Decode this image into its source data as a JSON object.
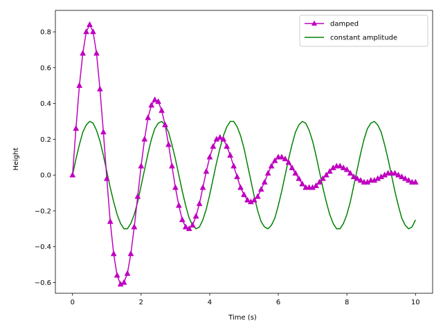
{
  "chart_data": {
    "type": "line",
    "title": "",
    "xlabel": "Time (s)",
    "ylabel": "Height",
    "xlim": [
      -0.5,
      10.5
    ],
    "ylim": [
      -0.66,
      0.92
    ],
    "xticks": [
      0,
      2,
      4,
      6,
      8,
      10
    ],
    "xtick_labels": [
      "0",
      "2",
      "4",
      "6",
      "8",
      "10"
    ],
    "yticks": [
      -0.6,
      -0.4,
      -0.2,
      0.0,
      0.2,
      0.4,
      0.6,
      0.8
    ],
    "ytick_labels": [
      "−0.6",
      "−0.4",
      "−0.2",
      "0.0",
      "0.2",
      "0.4",
      "0.6",
      "0.8"
    ],
    "grid": false,
    "legend_position": "top-right",
    "series": [
      {
        "name": "damped",
        "color": "#bf00bf",
        "marker": "triangle-up",
        "x": [
          0.0,
          0.1,
          0.2,
          0.3,
          0.4,
          0.5,
          0.6,
          0.7,
          0.8,
          0.9,
          1.0,
          1.1,
          1.2,
          1.3,
          1.4,
          1.5,
          1.6,
          1.7,
          1.8,
          1.9,
          2.0,
          2.1,
          2.2,
          2.3,
          2.4,
          2.5,
          2.6,
          2.7,
          2.8,
          2.9,
          3.0,
          3.1,
          3.2,
          3.3,
          3.4,
          3.5,
          3.6,
          3.7,
          3.8,
          3.9,
          4.0,
          4.1,
          4.2,
          4.3,
          4.4,
          4.5,
          4.6,
          4.7,
          4.8,
          4.9,
          5.0,
          5.1,
          5.2,
          5.3,
          5.4,
          5.5,
          5.6,
          5.7,
          5.8,
          5.9,
          6.0,
          6.1,
          6.2,
          6.3,
          6.4,
          6.5,
          6.6,
          6.7,
          6.8,
          6.9,
          7.0,
          7.1,
          7.2,
          7.3,
          7.4,
          7.5,
          7.6,
          7.7,
          7.8,
          7.9,
          8.0,
          8.1,
          8.2,
          8.3,
          8.4,
          8.5,
          8.6,
          8.7,
          8.8,
          8.9,
          9.0,
          9.1,
          9.2,
          9.3,
          9.4,
          9.5,
          9.6,
          9.7,
          9.8,
          9.9,
          10.0
        ],
        "y": [
          0.0,
          0.26,
          0.5,
          0.68,
          0.8,
          0.84,
          0.8,
          0.68,
          0.48,
          0.24,
          -0.02,
          -0.26,
          -0.44,
          -0.56,
          -0.61,
          -0.6,
          -0.55,
          -0.44,
          -0.29,
          -0.12,
          0.05,
          0.2,
          0.32,
          0.39,
          0.42,
          0.41,
          0.36,
          0.28,
          0.17,
          0.05,
          -0.07,
          -0.17,
          -0.25,
          -0.29,
          -0.3,
          -0.28,
          -0.23,
          -0.16,
          -0.07,
          0.02,
          0.1,
          0.16,
          0.2,
          0.21,
          0.2,
          0.16,
          0.11,
          0.05,
          -0.01,
          -0.07,
          -0.11,
          -0.14,
          -0.15,
          -0.14,
          -0.12,
          -0.08,
          -0.04,
          0.01,
          0.05,
          0.08,
          0.1,
          0.1,
          0.09,
          0.07,
          0.04,
          0.01,
          -0.02,
          -0.05,
          -0.07,
          -0.07,
          -0.07,
          -0.06,
          -0.04,
          -0.02,
          0.0,
          0.02,
          0.04,
          0.05,
          0.05,
          0.04,
          0.03,
          0.01,
          -0.01,
          -0.02,
          -0.03,
          -0.04,
          -0.04,
          -0.03,
          -0.03,
          -0.02,
          -0.01,
          0.0,
          0.01,
          0.01,
          0.01,
          0.0,
          -0.01,
          -0.02,
          -0.03,
          -0.04,
          -0.04
        ]
      },
      {
        "name": "constant amplitude",
        "color": "#008000",
        "marker": "none",
        "x": [
          0.0,
          0.1,
          0.2,
          0.3,
          0.4,
          0.5,
          0.6,
          0.7,
          0.8,
          0.9,
          1.0,
          1.1,
          1.2,
          1.3,
          1.4,
          1.5,
          1.6,
          1.7,
          1.8,
          1.9,
          2.0,
          2.1,
          2.2,
          2.3,
          2.4,
          2.5,
          2.6,
          2.7,
          2.8,
          2.9,
          3.0,
          3.1,
          3.2,
          3.3,
          3.4,
          3.5,
          3.6,
          3.7,
          3.8,
          3.9,
          4.0,
          4.1,
          4.2,
          4.3,
          4.4,
          4.5,
          4.6,
          4.7,
          4.8,
          4.9,
          5.0,
          5.1,
          5.2,
          5.3,
          5.4,
          5.5,
          5.6,
          5.7,
          5.8,
          5.9,
          6.0,
          6.1,
          6.2,
          6.3,
          6.4,
          6.5,
          6.6,
          6.7,
          6.8,
          6.9,
          7.0,
          7.1,
          7.2,
          7.3,
          7.4,
          7.5,
          7.6,
          7.7,
          7.8,
          7.9,
          8.0,
          8.1,
          8.2,
          8.3,
          8.4,
          8.5,
          8.6,
          8.7,
          8.8,
          8.9,
          9.0,
          9.1,
          9.2,
          9.3,
          9.4,
          9.5,
          9.6,
          9.7,
          9.8,
          9.9,
          10.0
        ],
        "y": [
          0.0,
          0.09,
          0.17,
          0.24,
          0.28,
          0.3,
          0.29,
          0.25,
          0.19,
          0.11,
          0.02,
          -0.07,
          -0.15,
          -0.22,
          -0.27,
          -0.3,
          -0.3,
          -0.27,
          -0.22,
          -0.15,
          -0.06,
          0.03,
          0.12,
          0.2,
          0.26,
          0.29,
          0.3,
          0.28,
          0.24,
          0.17,
          0.09,
          0.0,
          -0.09,
          -0.17,
          -0.24,
          -0.28,
          -0.3,
          -0.29,
          -0.25,
          -0.19,
          -0.11,
          -0.02,
          0.07,
          0.15,
          0.22,
          0.27,
          0.3,
          0.3,
          0.27,
          0.22,
          0.15,
          0.06,
          -0.03,
          -0.12,
          -0.2,
          -0.26,
          -0.29,
          -0.3,
          -0.28,
          -0.24,
          -0.17,
          -0.09,
          0.0,
          0.09,
          0.17,
          0.24,
          0.28,
          0.3,
          0.29,
          0.25,
          0.19,
          0.11,
          0.02,
          -0.07,
          -0.15,
          -0.22,
          -0.27,
          -0.3,
          -0.3,
          -0.27,
          -0.22,
          -0.15,
          -0.06,
          0.03,
          0.12,
          0.2,
          0.26,
          0.29,
          0.3,
          0.28,
          0.24,
          0.17,
          0.09,
          0.0,
          -0.09,
          -0.17,
          -0.24,
          -0.28,
          -0.3,
          -0.29,
          -0.25
        ]
      }
    ]
  }
}
